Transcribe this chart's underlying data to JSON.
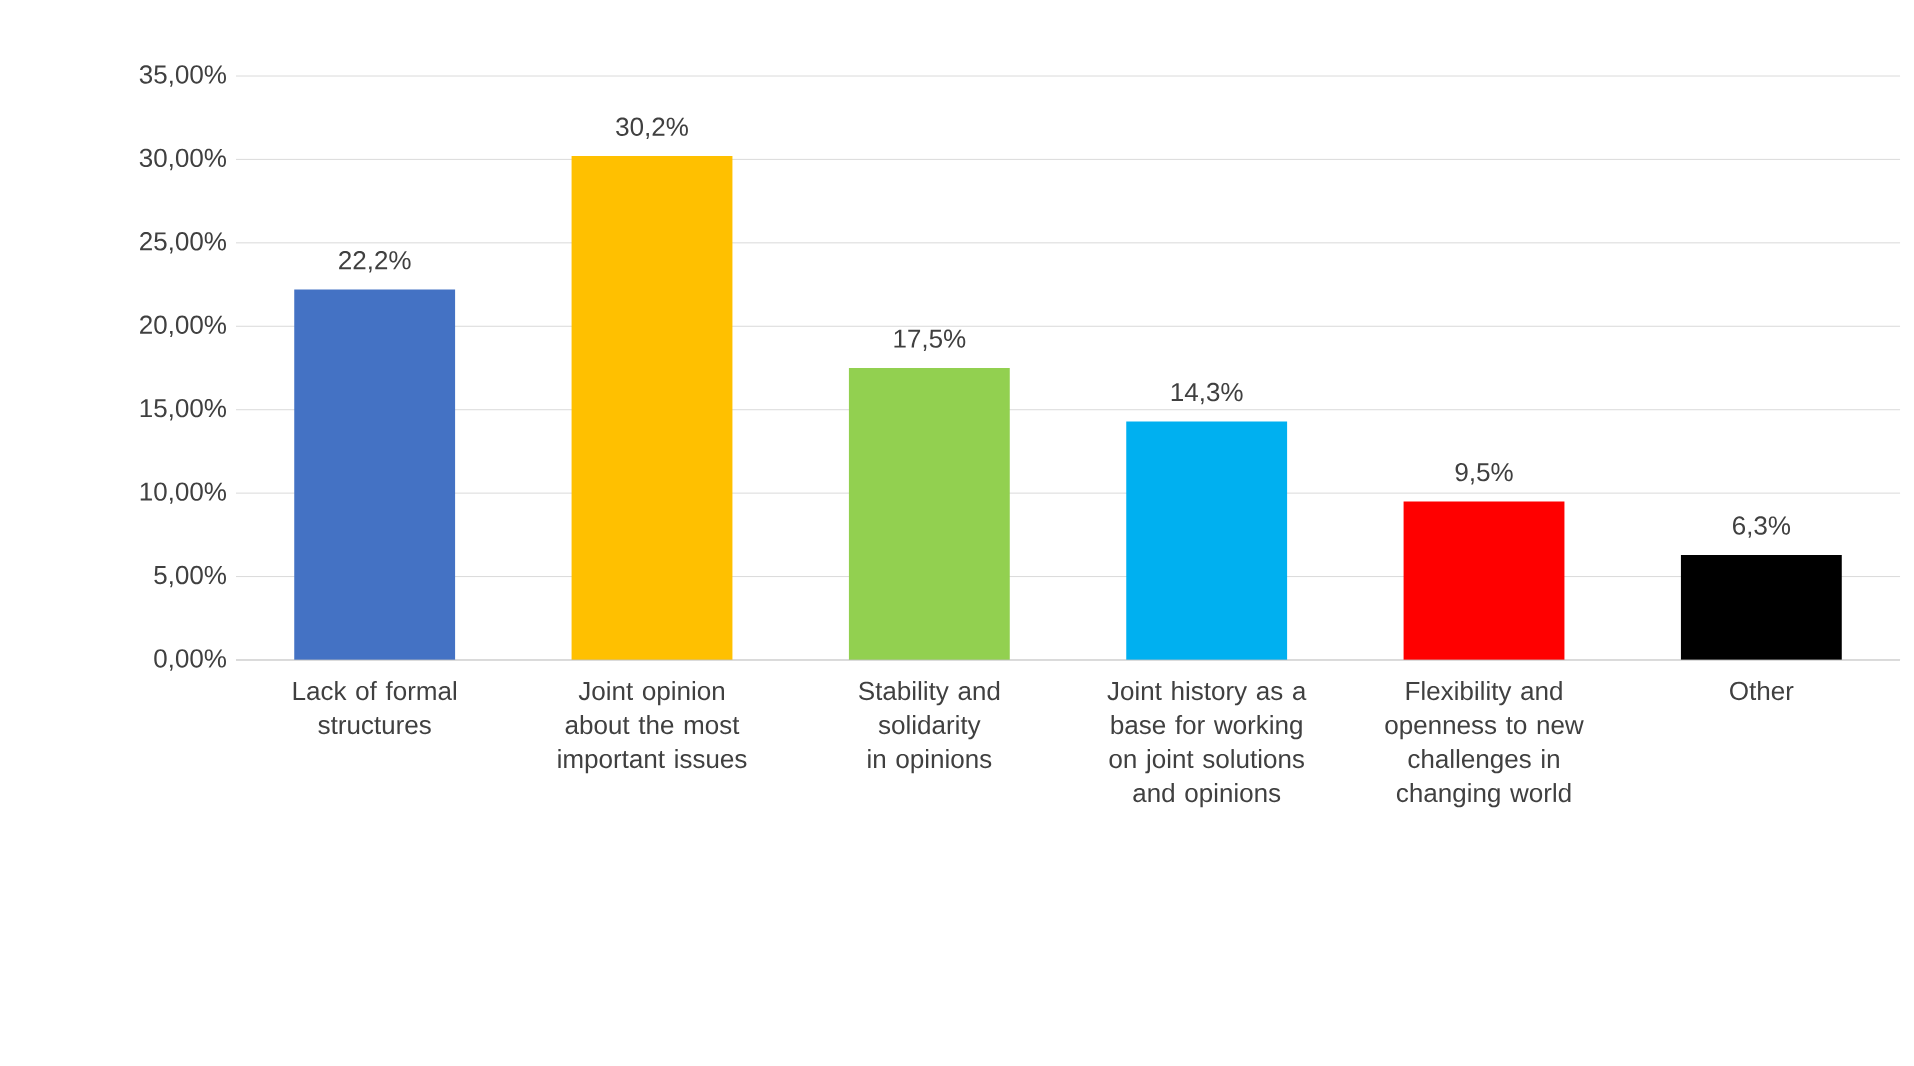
{
  "chart_data": {
    "type": "bar",
    "categories": [
      "Lack of formal structures",
      "Joint opinion about the most important issues",
      "Stability and solidarity in opinions",
      "Joint history as a base for working on joint solutions and opinions",
      "Flexibility and openness to new challenges in changing world",
      "Other"
    ],
    "values": [
      22.2,
      30.2,
      17.5,
      14.3,
      9.5,
      6.3
    ],
    "colors": [
      "#4472c4",
      "#ffc000",
      "#92d050",
      "#00b0f0",
      "#ff0000",
      "#000000"
    ],
    "value_labels": [
      "22,2%",
      "30,2%",
      "17,5%",
      "14,3%",
      "9,5%",
      "6,3%"
    ],
    "ylim": [
      0,
      35
    ],
    "yticks": [
      {
        "value": 0,
        "label": "0,00%"
      },
      {
        "value": 5,
        "label": "5,00%"
      },
      {
        "value": 10,
        "label": "10,00%"
      },
      {
        "value": 15,
        "label": "15,00%"
      },
      {
        "value": 20,
        "label": "20,00%"
      },
      {
        "value": 25,
        "label": "25,00%"
      },
      {
        "value": 30,
        "label": "30,00%"
      },
      {
        "value": 35,
        "label": "35,00%"
      }
    ],
    "grid": "y"
  }
}
